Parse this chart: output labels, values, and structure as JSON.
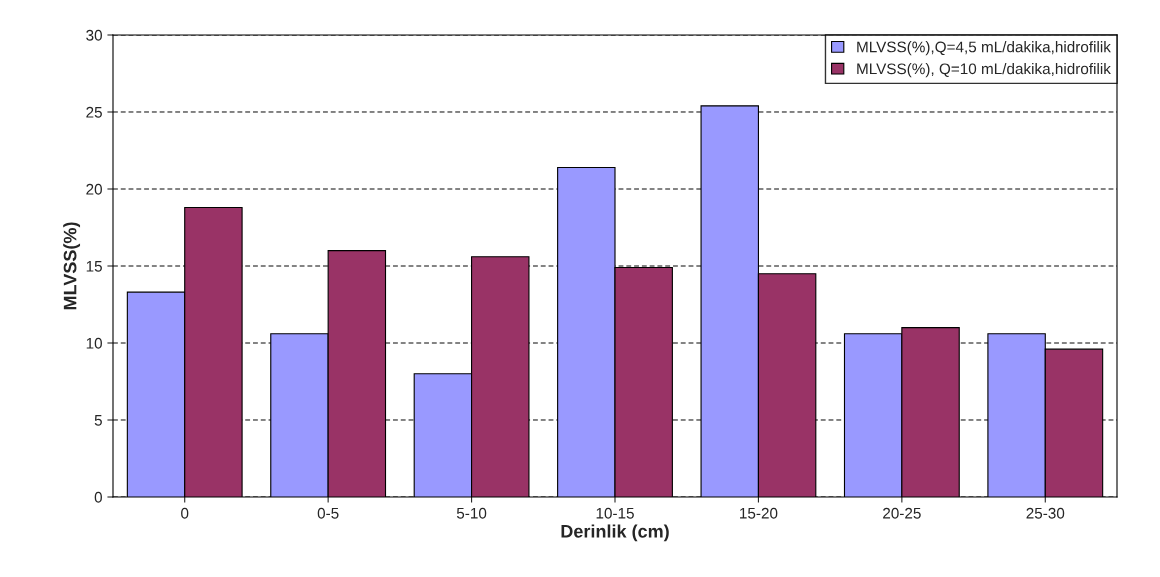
{
  "chart_data": {
    "type": "bar",
    "xlabel": "Derinlik (cm)",
    "ylabel": "MLVSS(%)",
    "categories": [
      "0",
      "0-5",
      "5-10",
      "10-15",
      "15-20",
      "20-25",
      "25-30"
    ],
    "series": [
      {
        "name": "MLVSS(%),Q=4,5 mL/dakika,hidrofilik",
        "color": "#9999ff",
        "values": [
          13.3,
          10.6,
          8.0,
          21.4,
          25.4,
          10.6,
          10.6
        ]
      },
      {
        "name": "MLVSS(%), Q=10 mL/dakika,hidrofilik",
        "color": "#993366",
        "values": [
          18.8,
          16.0,
          15.6,
          14.9,
          14.5,
          11.0,
          9.6
        ]
      }
    ],
    "ylim": [
      0,
      30
    ],
    "yticks": [
      0,
      5,
      10,
      15,
      20,
      25,
      30
    ],
    "grid": "y",
    "line_style": "dashed",
    "legend": "top right"
  }
}
